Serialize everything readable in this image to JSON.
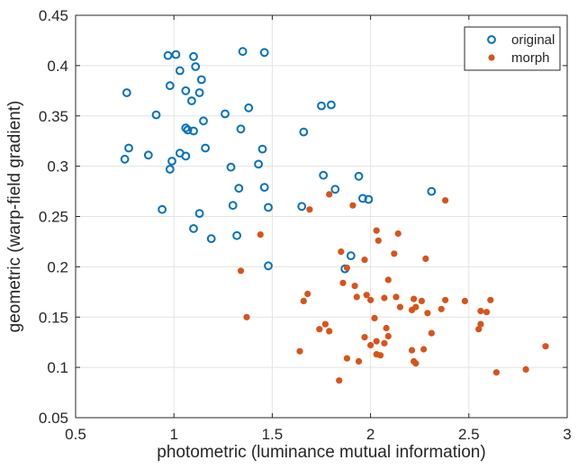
{
  "chart_data": {
    "type": "scatter",
    "xlabel": "photometric (luminance mutual information)",
    "ylabel": "geometric (warp-field gradient)",
    "xlim": [
      0.5,
      3
    ],
    "ylim": [
      0.05,
      0.45
    ],
    "xticks": [
      0.5,
      1,
      1.5,
      2,
      2.5,
      3
    ],
    "yticks": [
      0.05,
      0.1,
      0.15,
      0.2,
      0.25,
      0.3,
      0.35,
      0.4,
      0.45
    ],
    "xtick_labels": [
      "0.5",
      "1",
      "1.5",
      "2",
      "2.5",
      "3"
    ],
    "ytick_labels": [
      "0.05",
      "0.1",
      "0.15",
      "0.2",
      "0.25",
      "0.3",
      "0.35",
      "0.4",
      "0.45"
    ],
    "grid": true,
    "legend_position": "top-right",
    "series": [
      {
        "name": "original",
        "marker": "open-circle",
        "color": "#0072BD",
        "points": [
          [
            0.97,
            0.41
          ],
          [
            1.01,
            0.411
          ],
          [
            1.1,
            0.409
          ],
          [
            1.35,
            0.414
          ],
          [
            1.46,
            0.413
          ],
          [
            1.03,
            0.395
          ],
          [
            1.11,
            0.399
          ],
          [
            1.14,
            0.386
          ],
          [
            0.76,
            0.373
          ],
          [
            0.98,
            0.38
          ],
          [
            1.06,
            0.375
          ],
          [
            1.13,
            0.373
          ],
          [
            1.09,
            0.365
          ],
          [
            0.91,
            0.351
          ],
          [
            1.26,
            0.352
          ],
          [
            1.38,
            0.358
          ],
          [
            1.15,
            0.345
          ],
          [
            1.06,
            0.338
          ],
          [
            1.07,
            0.336
          ],
          [
            1.1,
            0.335
          ],
          [
            1.34,
            0.337
          ],
          [
            0.77,
            0.318
          ],
          [
            0.87,
            0.311
          ],
          [
            1.03,
            0.313
          ],
          [
            1.06,
            0.31
          ],
          [
            1.16,
            0.318
          ],
          [
            0.75,
            0.307
          ],
          [
            0.99,
            0.305
          ],
          [
            0.98,
            0.297
          ],
          [
            1.29,
            0.299
          ],
          [
            1.43,
            0.302
          ],
          [
            1.45,
            0.317
          ],
          [
            1.33,
            0.278
          ],
          [
            1.46,
            0.279
          ],
          [
            0.94,
            0.257
          ],
          [
            1.13,
            0.253
          ],
          [
            1.3,
            0.261
          ],
          [
            1.48,
            0.259
          ],
          [
            1.1,
            0.238
          ],
          [
            1.19,
            0.228
          ],
          [
            1.32,
            0.231
          ],
          [
            1.48,
            0.201
          ],
          [
            1.66,
            0.334
          ],
          [
            1.75,
            0.36
          ],
          [
            1.8,
            0.361
          ],
          [
            1.76,
            0.291
          ],
          [
            1.82,
            0.277
          ],
          [
            1.65,
            0.26
          ],
          [
            1.94,
            0.29
          ],
          [
            1.96,
            0.268
          ],
          [
            1.99,
            0.267
          ],
          [
            2.31,
            0.275
          ],
          [
            1.9,
            0.211
          ],
          [
            1.87,
            0.198
          ]
        ]
      },
      {
        "name": "morph",
        "marker": "filled-circle",
        "color": "#D95319",
        "points": [
          [
            1.79,
            0.272
          ],
          [
            1.69,
            0.257
          ],
          [
            1.91,
            0.261
          ],
          [
            2.38,
            0.266
          ],
          [
            1.44,
            0.232
          ],
          [
            2.03,
            0.236
          ],
          [
            2.14,
            0.233
          ],
          [
            2.04,
            0.226
          ],
          [
            2.12,
            0.213
          ],
          [
            1.85,
            0.215
          ],
          [
            1.88,
            0.199
          ],
          [
            1.97,
            0.207
          ],
          [
            2.28,
            0.208
          ],
          [
            1.34,
            0.196
          ],
          [
            1.86,
            0.184
          ],
          [
            1.92,
            0.181
          ],
          [
            2.09,
            0.187
          ],
          [
            1.93,
            0.17
          ],
          [
            1.98,
            0.172
          ],
          [
            2.0,
            0.167
          ],
          [
            2.07,
            0.169
          ],
          [
            2.13,
            0.17
          ],
          [
            2.22,
            0.168
          ],
          [
            2.26,
            0.166
          ],
          [
            2.38,
            0.167
          ],
          [
            2.48,
            0.166
          ],
          [
            2.61,
            0.167
          ],
          [
            1.68,
            0.173
          ],
          [
            1.66,
            0.166
          ],
          [
            2.15,
            0.16
          ],
          [
            2.21,
            0.157
          ],
          [
            2.23,
            0.16
          ],
          [
            2.29,
            0.154
          ],
          [
            2.36,
            0.158
          ],
          [
            2.56,
            0.156
          ],
          [
            2.59,
            0.155
          ],
          [
            1.37,
            0.15
          ],
          [
            1.77,
            0.143
          ],
          [
            1.74,
            0.138
          ],
          [
            1.79,
            0.136
          ],
          [
            2.02,
            0.149
          ],
          [
            2.08,
            0.139
          ],
          [
            2.09,
            0.131
          ],
          [
            2.56,
            0.143
          ],
          [
            2.55,
            0.138
          ],
          [
            1.97,
            0.13
          ],
          [
            2.0,
            0.122
          ],
          [
            2.03,
            0.126
          ],
          [
            2.07,
            0.124
          ],
          [
            2.31,
            0.134
          ],
          [
            2.21,
            0.117
          ],
          [
            2.27,
            0.118
          ],
          [
            1.64,
            0.116
          ],
          [
            2.03,
            0.113
          ],
          [
            2.05,
            0.112
          ],
          [
            2.22,
            0.106
          ],
          [
            2.23,
            0.104
          ],
          [
            1.88,
            0.109
          ],
          [
            1.94,
            0.106
          ],
          [
            1.84,
            0.087
          ],
          [
            2.64,
            0.095
          ],
          [
            2.79,
            0.098
          ],
          [
            2.89,
            0.121
          ]
        ]
      }
    ]
  }
}
